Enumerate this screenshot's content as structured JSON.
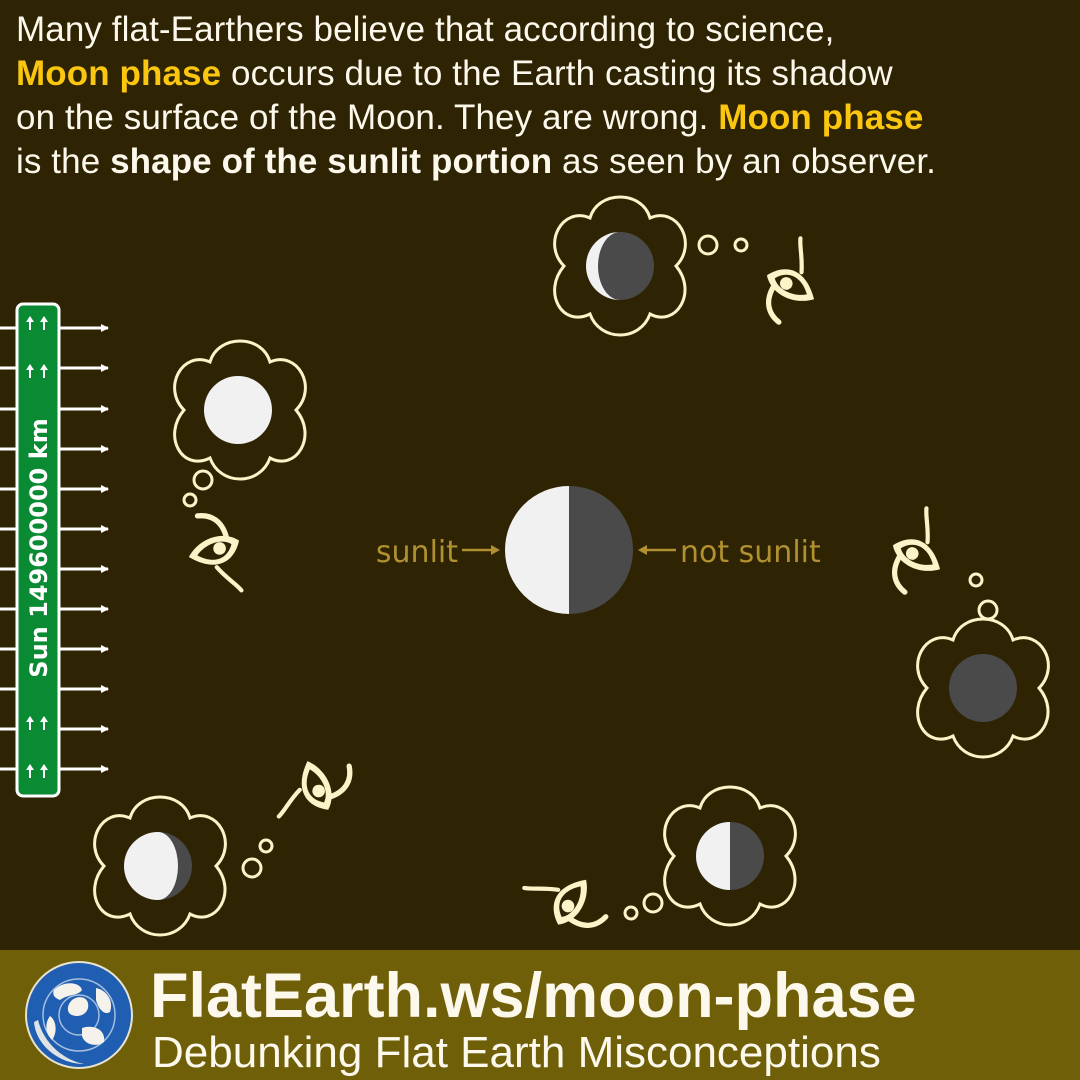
{
  "intro": {
    "line1": "Many flat-Earthers believe that according to science,",
    "term1": "Moon phase",
    "line2_rest": " occurs due to the Earth casting its shadow",
    "line3": "on the surface of the Moon. They are wrong. ",
    "term2": "Moon phase",
    "line4_start": "is the ",
    "line4_bold": "shape of the sunlit portion",
    "line4_end": " as seen by an observer."
  },
  "diagram": {
    "sign_text": "Sun 149600000 km",
    "label_left": "sunlit",
    "label_right": "not sunlit"
  },
  "footer": {
    "site": "FlatEarth.ws/moon-phase",
    "tagline": "Debunking Flat Earth Misconceptions"
  },
  "colors": {
    "background": "#2e2303",
    "accent": "#fbc60f",
    "label": "#b09030",
    "sign": "#0a8a33",
    "footer": "#6f5f09",
    "moon_lit": "#f1f1f1",
    "moon_dark": "#4a4a4a"
  },
  "icons": [
    "eye-icon",
    "thought-bubble-icon",
    "arrow-right-icon",
    "arrow-up-icon",
    "globe-logo-icon"
  ]
}
